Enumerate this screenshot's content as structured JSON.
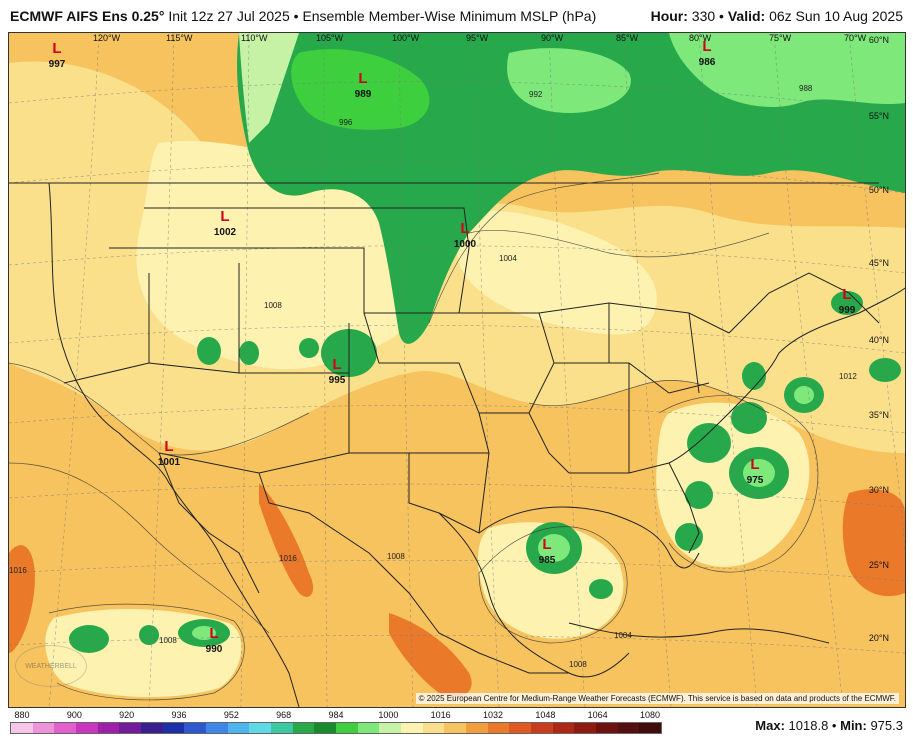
{
  "header": {
    "model": "ECMWF AIFS Ens 0.25°",
    "init": "Init 12z 27 Jul 2025",
    "separator": "•",
    "field": "Ensemble Member-Wise Minimum MSLP (hPa)",
    "hour_label": "Hour:",
    "hour": "330",
    "valid_label": "Valid:",
    "valid": "06z Sun 10 Aug 2025"
  },
  "map": {
    "lon_labels": [
      "120°W",
      "115°W",
      "110°W",
      "105°W",
      "100°W",
      "95°W",
      "90°W",
      "85°W",
      "80°W",
      "75°W",
      "70°W"
    ],
    "lat_labels": [
      "60°N",
      "55°N",
      "50°N",
      "45°N",
      "40°N",
      "35°N",
      "30°N",
      "25°N",
      "20°N"
    ],
    "lows": [
      {
        "symbol": "L",
        "value": "997"
      },
      {
        "symbol": "L",
        "value": "989"
      },
      {
        "symbol": "L",
        "value": "986"
      },
      {
        "symbol": "L",
        "value": "1002"
      },
      {
        "symbol": "L",
        "value": "1000"
      },
      {
        "symbol": "L",
        "value": "995"
      },
      {
        "symbol": "L",
        "value": "1001"
      },
      {
        "symbol": "L",
        "value": "999"
      },
      {
        "symbol": "L",
        "value": "975"
      },
      {
        "symbol": "L",
        "value": "985"
      },
      {
        "symbol": "L",
        "value": "990"
      }
    ],
    "contour_labels": [
      "996",
      "992",
      "988",
      "1004",
      "1008",
      "1012",
      "1016"
    ],
    "credit": "© 2025 European Centre for Medium-Range Weather Forecasts (ECMWF). This service is based on data and products of the ECMWF.",
    "logo_text": "WEATHERBELL"
  },
  "colorbar": {
    "ticks": [
      "880",
      "900",
      "920",
      "936",
      "952",
      "968",
      "984",
      "1000",
      "1016",
      "1032",
      "1048",
      "1064",
      "1080"
    ],
    "colors": [
      "#f6c5e8",
      "#ee93d9",
      "#e160cc",
      "#c836bd",
      "#9e1fa9",
      "#6f1b9a",
      "#3a1d8f",
      "#1f2fa8",
      "#2f58d0",
      "#3f86e8",
      "#4eb4ee",
      "#5fd8e8",
      "#3ec8a0",
      "#27a84b",
      "#168a2c",
      "#3ecf3e",
      "#7ee87a",
      "#c6f2a6",
      "#fdf2b0",
      "#fbe08b",
      "#f7c35e",
      "#f29e3c",
      "#ea7a2a",
      "#de5a22",
      "#c93c1c",
      "#ad2716",
      "#8e1a12",
      "#6e1210",
      "#521010",
      "#3f0d0d"
    ]
  },
  "stats": {
    "max_label": "Max:",
    "max": "1018.8",
    "min_label": "Min:",
    "min": "975.3"
  }
}
